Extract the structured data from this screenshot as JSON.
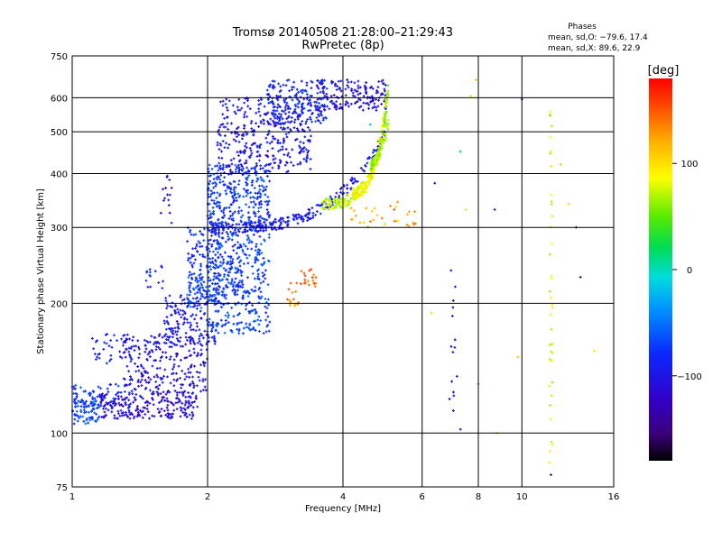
{
  "chart_data": {
    "type": "scatter",
    "title": "Tromsø 20140508 21:28:00–21:29:43",
    "subtitle": "RwPretec (8p)",
    "xlabel": "Frequency [MHz]",
    "ylabel": "Stationary phase Virtual Height [km]",
    "x_scale": "log",
    "y_scale": "log",
    "xlim": [
      1,
      16
    ],
    "ylim": [
      75,
      750
    ],
    "x_ticks": [
      1,
      2,
      4,
      6,
      8,
      10,
      16
    ],
    "x_tick_labels": [
      "1",
      "2",
      "4",
      "6",
      "8",
      "10",
      "16"
    ],
    "y_ticks": [
      75,
      100,
      200,
      300,
      400,
      500,
      600,
      750
    ],
    "y_tick_labels": [
      "75",
      "100",
      "200",
      "300",
      "400",
      "500",
      "600",
      "750"
    ],
    "grid": true,
    "stats": {
      "heading": "Phases",
      "line_o": "mean, sd,O: −79.6, 17.4",
      "line_x": "mean, sd,X:  89.6, 22.9"
    },
    "colorbar": {
      "label": "[deg]",
      "range": [
        -180,
        180
      ],
      "ticks": [
        100,
        0,
        -100
      ],
      "tick_labels": [
        "100",
        "0",
        "−100"
      ],
      "colormap": "rainbow (black–purple–blue–cyan–green–yellow–orange–red)"
    },
    "clusters": [
      {
        "f": [
          1.0,
          1.15
        ],
        "h": [
          105,
          120
        ],
        "phase": -65,
        "n": 80
      },
      {
        "f": [
          1.0,
          1.35
        ],
        "h": [
          115,
          130
        ],
        "phase": -75,
        "n": 60
      },
      {
        "f": [
          1.1,
          1.3
        ],
        "h": [
          145,
          170
        ],
        "phase": -90,
        "n": 30
      },
      {
        "f": [
          1.15,
          1.9
        ],
        "h": [
          108,
          125
        ],
        "phase": -110,
        "n": 230
      },
      {
        "f": [
          1.3,
          2.0
        ],
        "h": [
          125,
          170
        ],
        "phase": -105,
        "n": 240
      },
      {
        "f": [
          1.6,
          2.1
        ],
        "h": [
          160,
          210
        ],
        "phase": -95,
        "n": 150
      },
      {
        "f": [
          1.8,
          2.4
        ],
        "h": [
          200,
          300
        ],
        "phase": -80,
        "n": 220
      },
      {
        "f": [
          2.0,
          2.75
        ],
        "h": [
          170,
          300
        ],
        "phase": -70,
        "n": 320
      },
      {
        "f": [
          2.0,
          2.75
        ],
        "h": [
          300,
          420
        ],
        "phase": -75,
        "n": 300
      },
      {
        "f": [
          2.1,
          3.4
        ],
        "h": [
          400,
          600
        ],
        "phase": -100,
        "n": 350
      },
      {
        "f": [
          2.7,
          3.7
        ],
        "h": [
          520,
          660
        ],
        "phase": -85,
        "n": 180
      },
      {
        "f": [
          3.5,
          5.0
        ],
        "h": [
          560,
          660
        ],
        "phase": -105,
        "n": 160
      },
      {
        "f": [
          2.1,
          1.8
        ],
        "h": [
          195,
          230
        ],
        "phase": -60,
        "n": 40
      },
      {
        "f": [
          3.0,
          3.5
        ],
        "h": [
          210,
          240
        ],
        "phase": 145,
        "n": 25
      },
      {
        "f": [
          3.0,
          3.2
        ],
        "h": [
          195,
          205
        ],
        "phase": 130,
        "n": 12
      },
      {
        "f": [
          1.55,
          1.7
        ],
        "h": [
          300,
          400
        ],
        "phase": -115,
        "n": 15
      },
      {
        "f": [
          1.45,
          1.6
        ],
        "h": [
          215,
          245
        ],
        "phase": -85,
        "n": 15
      },
      {
        "f": [
          4.1,
          5.8
        ],
        "h": [
          300,
          345
        ],
        "phase": 120,
        "n": 30
      },
      {
        "f": [
          6.9,
          7.2
        ],
        "h": [
          100,
          250
        ],
        "phase": -110,
        "n": 15
      },
      {
        "f": [
          11.5,
          11.7
        ],
        "h": [
          80,
          600
        ],
        "phase": 80,
        "n": 40
      }
    ],
    "traces": [
      {
        "f": [
          2.0,
          5.0
        ],
        "h": [
          300,
          500
        ],
        "curve": 1.6,
        "phase": -95,
        "n": 260
      },
      {
        "f": [
          3.6,
          5.05
        ],
        "h": [
          340,
          520
        ],
        "curve": 1.4,
        "phase": 75,
        "n": 180
      },
      {
        "f": [
          4.2,
          5.0
        ],
        "h": [
          360,
          600
        ],
        "curve": 1.3,
        "phase": 90,
        "n": 120
      },
      {
        "f": [
          4.6,
          5.05
        ],
        "h": [
          420,
          640
        ],
        "curve": 1.2,
        "phase": 60,
        "n": 90
      }
    ],
    "sparse_points": [
      {
        "x": 7.3,
        "y": 102,
        "phase": -110
      },
      {
        "x": 8.0,
        "y": 130,
        "phase": 20
      },
      {
        "x": 10.0,
        "y": 595,
        "phase": -115
      },
      {
        "x": 13.2,
        "y": 300,
        "phase": -100
      },
      {
        "x": 12.2,
        "y": 420,
        "phase": 110
      },
      {
        "x": 12.7,
        "y": 340,
        "phase": 100
      },
      {
        "x": 13.5,
        "y": 230,
        "phase": -160
      },
      {
        "x": 14.5,
        "y": 155,
        "phase": 100
      },
      {
        "x": 11.6,
        "y": 80,
        "phase": -120
      },
      {
        "x": 6.4,
        "y": 380,
        "phase": -110
      },
      {
        "x": 7.5,
        "y": 330,
        "phase": 80
      },
      {
        "x": 8.7,
        "y": 330,
        "phase": -80
      },
      {
        "x": 7.7,
        "y": 605,
        "phase": 100
      },
      {
        "x": 7.3,
        "y": 450,
        "phase": 20
      },
      {
        "x": 4.6,
        "y": 520,
        "phase": -20
      },
      {
        "x": 9.8,
        "y": 150,
        "phase": 110
      },
      {
        "x": 8.8,
        "y": 100,
        "phase": 110
      },
      {
        "x": 5.2,
        "y": 330,
        "phase": 150
      },
      {
        "x": 7.9,
        "y": 660,
        "phase": 110
      },
      {
        "x": 6.3,
        "y": 190,
        "phase": 100
      }
    ]
  }
}
